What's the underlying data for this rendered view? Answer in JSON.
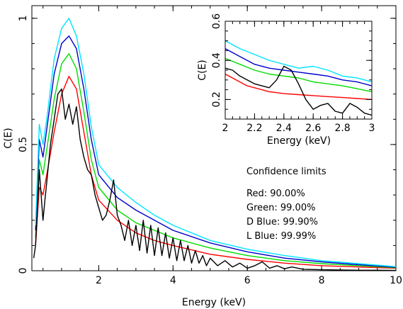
{
  "chart_data": [
    {
      "type": "line",
      "xlabel": "Energy (keV)",
      "ylabel": "C(E)",
      "xlim": [
        0.2,
        10
      ],
      "ylim": [
        0,
        1.05
      ],
      "x_ticks": [
        "2",
        "4",
        "6",
        "8",
        "10"
      ],
      "y_ticks": [
        "0",
        "0.5",
        "1"
      ],
      "grid": false,
      "series": [
        {
          "name": "Red: 90.00%",
          "color": "#ff0000",
          "x": [
            0.3,
            0.4,
            0.5,
            0.6,
            0.8,
            1.0,
            1.2,
            1.4,
            1.6,
            1.8,
            2.0,
            2.5,
            3.0,
            3.5,
            4.0,
            5.0,
            6.0,
            7.0,
            8.0,
            9.0,
            10.0
          ],
          "y": [
            0.1,
            0.33,
            0.3,
            0.38,
            0.55,
            0.7,
            0.77,
            0.72,
            0.55,
            0.38,
            0.28,
            0.2,
            0.15,
            0.12,
            0.1,
            0.065,
            0.045,
            0.03,
            0.02,
            0.015,
            0.01
          ]
        },
        {
          "name": "Green: 99.00%",
          "color": "#00dd00",
          "x": [
            0.3,
            0.4,
            0.5,
            0.6,
            0.8,
            1.0,
            1.2,
            1.4,
            1.6,
            1.8,
            2.0,
            2.5,
            3.0,
            3.5,
            4.0,
            5.0,
            6.0,
            7.0,
            8.0,
            9.0,
            10.0
          ],
          "y": [
            0.13,
            0.44,
            0.38,
            0.48,
            0.68,
            0.82,
            0.86,
            0.8,
            0.63,
            0.44,
            0.33,
            0.24,
            0.19,
            0.16,
            0.13,
            0.09,
            0.06,
            0.04,
            0.028,
            0.02,
            0.012
          ]
        },
        {
          "name": "D Blue: 99.90%",
          "color": "#0000cc",
          "x": [
            0.3,
            0.4,
            0.5,
            0.6,
            0.8,
            1.0,
            1.2,
            1.4,
            1.6,
            1.8,
            2.0,
            2.5,
            3.0,
            3.5,
            4.0,
            5.0,
            6.0,
            7.0,
            8.0,
            9.0,
            10.0
          ],
          "y": [
            0.16,
            0.52,
            0.45,
            0.56,
            0.78,
            0.9,
            0.93,
            0.88,
            0.72,
            0.52,
            0.38,
            0.29,
            0.24,
            0.2,
            0.16,
            0.11,
            0.075,
            0.05,
            0.035,
            0.024,
            0.014
          ]
        },
        {
          "name": "L Blue: 99.99%",
          "color": "#00e5ff",
          "x": [
            0.3,
            0.4,
            0.5,
            0.6,
            0.8,
            1.0,
            1.2,
            1.4,
            1.6,
            1.8,
            2.0,
            2.5,
            3.0,
            3.5,
            4.0,
            5.0,
            6.0,
            7.0,
            8.0,
            9.0,
            10.0
          ],
          "y": [
            0.18,
            0.58,
            0.5,
            0.6,
            0.84,
            0.96,
            1.0,
            0.93,
            0.78,
            0.57,
            0.42,
            0.33,
            0.27,
            0.22,
            0.18,
            0.12,
            0.085,
            0.06,
            0.04,
            0.028,
            0.016
          ]
        },
        {
          "color": "#000000",
          "x": [
            0.25,
            0.3,
            0.35,
            0.4,
            0.45,
            0.5,
            0.55,
            0.6,
            0.7,
            0.8,
            0.9,
            1.0,
            1.1,
            1.2,
            1.3,
            1.4,
            1.5,
            1.6,
            1.7,
            1.8,
            1.9,
            2.0,
            2.1,
            2.2,
            2.3,
            2.4,
            2.5,
            2.6,
            2.7,
            2.8,
            2.9,
            3.0,
            3.1,
            3.2,
            3.3,
            3.4,
            3.5,
            3.6,
            3.7,
            3.8,
            3.9,
            4.0,
            4.1,
            4.2,
            4.3,
            4.4,
            4.5,
            4.6,
            4.7,
            4.8,
            4.9,
            5.0,
            5.2,
            5.4,
            5.6,
            5.8,
            6.0,
            6.2,
            6.4,
            6.6,
            6.8,
            7.0,
            7.2,
            7.5,
            8.0,
            8.5,
            9.0,
            9.5,
            10.0
          ],
          "y": [
            0.05,
            0.1,
            0.25,
            0.4,
            0.3,
            0.2,
            0.28,
            0.35,
            0.5,
            0.6,
            0.7,
            0.72,
            0.6,
            0.66,
            0.58,
            0.65,
            0.52,
            0.45,
            0.4,
            0.38,
            0.3,
            0.25,
            0.2,
            0.22,
            0.28,
            0.36,
            0.22,
            0.18,
            0.12,
            0.2,
            0.1,
            0.18,
            0.08,
            0.2,
            0.07,
            0.18,
            0.06,
            0.17,
            0.06,
            0.15,
            0.05,
            0.13,
            0.04,
            0.12,
            0.04,
            0.1,
            0.03,
            0.08,
            0.03,
            0.06,
            0.02,
            0.05,
            0.02,
            0.04,
            0.015,
            0.03,
            0.01,
            0.02,
            0.035,
            0.01,
            0.02,
            0.008,
            0.015,
            0.006,
            0.004,
            0.003,
            0.002,
            0.002,
            0.001
          ]
        }
      ]
    },
    {
      "type": "line",
      "xlabel": "Energy (keV)",
      "ylabel": "C(E)",
      "xlim": [
        2,
        3
      ],
      "ylim": [
        0.1,
        0.6
      ],
      "x_ticks": [
        "2",
        "2.2",
        "2.4",
        "2.6",
        "2.8",
        "3"
      ],
      "y_ticks": [
        "0.2",
        "0.4",
        "0.6"
      ],
      "grid": false,
      "series": [
        {
          "name": "Red: 90.00%",
          "color": "#ff0000",
          "x": [
            2.0,
            2.05,
            2.1,
            2.15,
            2.2,
            2.25,
            2.3,
            2.35,
            2.4,
            2.5,
            2.6,
            2.7,
            2.8,
            2.9,
            3.0
          ],
          "y": [
            0.33,
            0.31,
            0.29,
            0.27,
            0.26,
            0.25,
            0.24,
            0.235,
            0.23,
            0.225,
            0.22,
            0.215,
            0.21,
            0.205,
            0.2
          ]
        },
        {
          "name": "Green: 99.00%",
          "color": "#00dd00",
          "x": [
            2.0,
            2.1,
            2.2,
            2.3,
            2.4,
            2.5,
            2.6,
            2.7,
            2.8,
            2.9,
            3.0
          ],
          "y": [
            0.41,
            0.38,
            0.35,
            0.33,
            0.32,
            0.31,
            0.29,
            0.28,
            0.27,
            0.255,
            0.24
          ]
        },
        {
          "name": "D Blue: 99.90%",
          "color": "#0000cc",
          "x": [
            2.0,
            2.1,
            2.2,
            2.3,
            2.4,
            2.5,
            2.6,
            2.7,
            2.8,
            2.9,
            3.0
          ],
          "y": [
            0.46,
            0.42,
            0.38,
            0.36,
            0.35,
            0.34,
            0.33,
            0.32,
            0.3,
            0.29,
            0.27
          ]
        },
        {
          "name": "L Blue: 99.99%",
          "color": "#00e5ff",
          "x": [
            2.0,
            2.1,
            2.2,
            2.3,
            2.4,
            2.5,
            2.6,
            2.7,
            2.8,
            2.9,
            3.0
          ],
          "y": [
            0.5,
            0.46,
            0.43,
            0.4,
            0.38,
            0.36,
            0.37,
            0.35,
            0.32,
            0.31,
            0.29
          ]
        },
        {
          "color": "#000000",
          "x": [
            2.0,
            2.05,
            2.1,
            2.15,
            2.2,
            2.25,
            2.3,
            2.35,
            2.4,
            2.45,
            2.5,
            2.55,
            2.6,
            2.65,
            2.7,
            2.75,
            2.8,
            2.85,
            2.9,
            2.95,
            3.0
          ],
          "y": [
            0.36,
            0.35,
            0.32,
            0.3,
            0.28,
            0.27,
            0.26,
            0.3,
            0.37,
            0.35,
            0.28,
            0.2,
            0.15,
            0.17,
            0.18,
            0.14,
            0.13,
            0.18,
            0.16,
            0.13,
            0.12
          ]
        }
      ]
    }
  ],
  "legend": {
    "title": "Confidence limits",
    "items": [
      {
        "label": "Red: 90.00%"
      },
      {
        "label": "Green: 99.00%"
      },
      {
        "label": "D Blue: 99.90%"
      },
      {
        "label": "L Blue: 99.99%"
      }
    ]
  }
}
